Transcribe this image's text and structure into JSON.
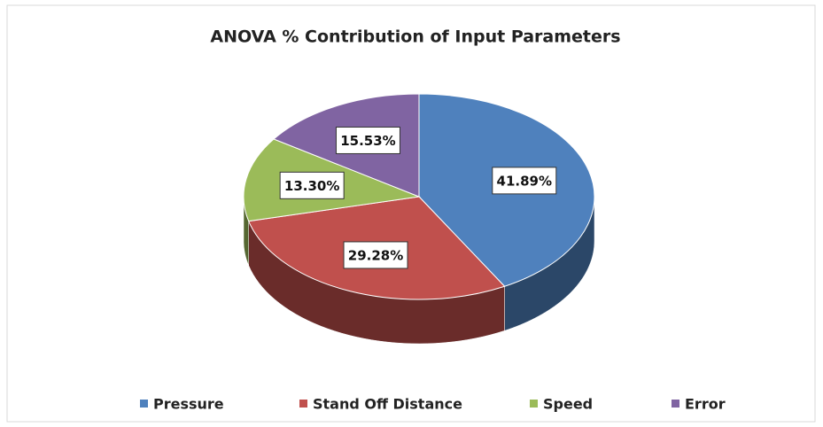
{
  "chart_data": {
    "type": "pie",
    "title": "ANOVA % Contribution of Input Parameters",
    "categories": [
      "Pressure",
      "Stand Off Distance",
      "Speed",
      "Error"
    ],
    "values": [
      41.89,
      29.28,
      13.3,
      15.53
    ],
    "value_labels": [
      "41.89%",
      "29.28%",
      "13.30%",
      "15.53%"
    ],
    "colors": [
      "#4f81bd",
      "#c0504d",
      "#9bbb59",
      "#8064a2"
    ],
    "legend": "bottom"
  }
}
